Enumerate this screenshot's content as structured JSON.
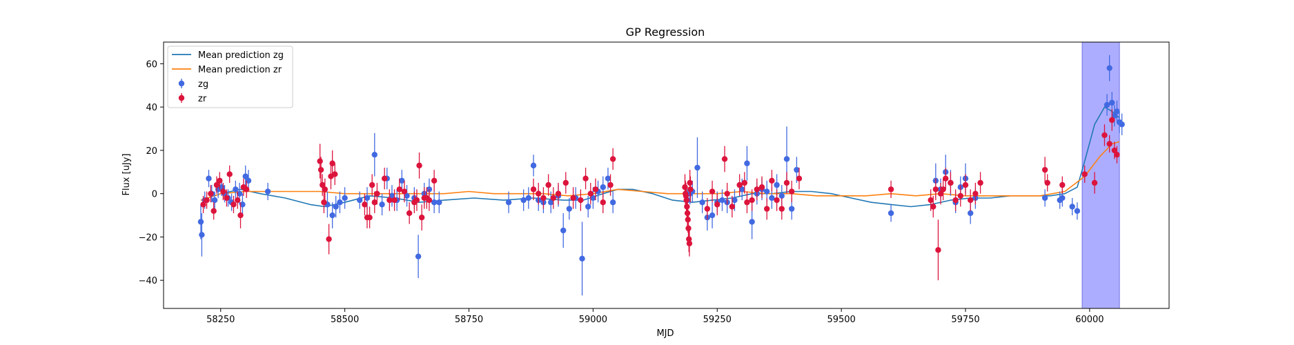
{
  "chart_data": {
    "type": "scatter",
    "title": "GP Regression",
    "xlabel": "MJD",
    "ylabel": "Flux [uJy]",
    "xlim": [
      58135,
      60160
    ],
    "ylim": [
      -53,
      70
    ],
    "xticks": [
      58250,
      58500,
      58750,
      59000,
      59250,
      59500,
      59750,
      60000
    ],
    "yticks": [
      -40,
      -20,
      0,
      20,
      40,
      60
    ],
    "legend": {
      "placement": "top-left",
      "entries": [
        "Mean prediction zg",
        "Mean prediction zr",
        "zg",
        "zr"
      ]
    },
    "colors": {
      "zg_points": "#4169e1",
      "zr_points": "#dc143c",
      "zg_line": "#1f77b4",
      "zr_line": "#ff7f0e",
      "band": "#a9a9ff",
      "band_edge": "#6f6fe6"
    },
    "highlight_band": {
      "x0": 59985,
      "x1": 60060
    },
    "series": [
      {
        "name": "Mean prediction zg",
        "kind": "line",
        "x": [
          58210,
          58250,
          58290,
          58330,
          58380,
          58430,
          58460,
          58500,
          58550,
          58600,
          58650,
          58700,
          58760,
          58820,
          58880,
          58940,
          58980,
          59020,
          59050,
          59080,
          59120,
          59160,
          59200,
          59240,
          59280,
          59320,
          59360,
          59400,
          59440,
          59480,
          59520,
          59560,
          59600,
          59640,
          59680,
          59720,
          59760,
          59800,
          59840,
          59880,
          59920,
          59950,
          59975,
          59990,
          60010,
          60030,
          60045,
          60060
        ],
        "y": [
          -3,
          0,
          2,
          0,
          -2,
          -5,
          -6,
          -4,
          -1,
          -2,
          -4,
          -3,
          -2,
          -3,
          -2,
          -3,
          -3,
          0,
          2,
          2,
          0,
          -3,
          -4,
          -3,
          -2,
          0,
          0,
          1,
          1,
          0,
          -2,
          -4,
          -5,
          -6,
          -5,
          -3,
          -2,
          -2,
          -1,
          -1,
          -1,
          0,
          3,
          15,
          32,
          40,
          38,
          35
        ]
      },
      {
        "name": "Mean prediction zr",
        "kind": "line",
        "x": [
          58210,
          58250,
          58300,
          58350,
          58400,
          58450,
          58500,
          58550,
          58600,
          58650,
          58700,
          58750,
          58800,
          58850,
          58900,
          58950,
          59000,
          59050,
          59100,
          59150,
          59200,
          59250,
          59300,
          59350,
          59400,
          59450,
          59500,
          59550,
          59600,
          59650,
          59700,
          59750,
          59800,
          59850,
          59900,
          59950,
          59990,
          60020,
          60045,
          60060
        ],
        "y": [
          -3,
          0,
          1,
          1,
          1,
          1,
          0,
          0,
          0,
          0,
          0,
          1,
          0,
          0,
          0,
          -1,
          0,
          2,
          1,
          0,
          0,
          0,
          1,
          0,
          0,
          -1,
          -1,
          -1,
          0,
          -1,
          0,
          -1,
          -1,
          -1,
          -1,
          1,
          8,
          17,
          23,
          24
        ]
      },
      {
        "name": "zg",
        "kind": "errorbar",
        "x": [
          58210,
          58212,
          58218,
          58226,
          58232,
          58238,
          58245,
          58252,
          58258,
          58265,
          58272,
          58280,
          58288,
          58294,
          58300,
          58306,
          58345,
          58465,
          58475,
          58482,
          58490,
          58500,
          58530,
          58545,
          58560,
          58575,
          58585,
          58595,
          58605,
          58615,
          58625,
          58640,
          58648,
          58660,
          58670,
          58680,
          58690,
          58830,
          58860,
          58870,
          58880,
          58890,
          58900,
          58915,
          58930,
          58940,
          58952,
          58965,
          58978,
          58990,
          59000,
          59010,
          59020,
          59030,
          59040,
          59190,
          59195,
          59200,
          59210,
          59220,
          59230,
          59240,
          59250,
          59260,
          59270,
          59285,
          59300,
          59310,
          59320,
          59330,
          59340,
          59350,
          59360,
          59370,
          59380,
          59390,
          59400,
          59410,
          59600,
          59690,
          59700,
          59710,
          59720,
          59730,
          59740,
          59750,
          59760,
          59770,
          59910,
          59940,
          59945,
          59965,
          59975,
          60035,
          60040,
          60045,
          60050,
          60055,
          60060,
          60065
        ],
        "y": [
          -13,
          -19,
          -3,
          7,
          0,
          -3,
          2,
          3,
          0,
          -2,
          -4,
          2,
          0,
          -5,
          8,
          6,
          1,
          -5,
          -10,
          -6,
          -4,
          -2,
          -3,
          -2,
          18,
          -5,
          7,
          -1,
          -3,
          6,
          -1,
          -2,
          -29,
          0,
          2,
          -4,
          -4,
          -4,
          -3,
          -2,
          13,
          -3,
          -4,
          -4,
          -1,
          -17,
          -7,
          -2,
          -30,
          -6,
          -2,
          1,
          3,
          7,
          -4,
          -3,
          0,
          1,
          12,
          -4,
          -11,
          -10,
          -4,
          -3,
          -4,
          -3,
          2,
          14,
          -13,
          0,
          2,
          1,
          -2,
          4,
          -1,
          16,
          -7,
          11,
          -9,
          6,
          2,
          10,
          5,
          -4,
          3,
          7,
          -9,
          -2,
          -2,
          -3,
          -2,
          -6,
          -8,
          41,
          58,
          42,
          36,
          38,
          33,
          32
        ],
        "yerr": [
          8,
          10,
          4,
          4,
          4,
          4,
          4,
          4,
          4,
          4,
          4,
          4,
          5,
          5,
          5,
          5,
          4,
          6,
          6,
          5,
          5,
          5,
          4,
          5,
          10,
          5,
          5,
          5,
          5,
          5,
          5,
          5,
          10,
          5,
          5,
          5,
          5,
          5,
          5,
          5,
          5,
          5,
          5,
          5,
          5,
          8,
          5,
          5,
          17,
          5,
          5,
          5,
          5,
          5,
          5,
          5,
          5,
          5,
          14,
          5,
          6,
          6,
          5,
          5,
          5,
          5,
          5,
          8,
          8,
          5,
          5,
          5,
          5,
          5,
          5,
          15,
          5,
          6,
          4,
          8,
          5,
          8,
          6,
          5,
          5,
          7,
          5,
          5,
          4,
          4,
          4,
          4,
          4,
          5,
          6,
          5,
          5,
          5,
          5,
          5
        ]
      },
      {
        "name": "zr",
        "kind": "errorbar",
        "x": [
          58215,
          58222,
          58230,
          58236,
          58242,
          58248,
          58255,
          58262,
          58268,
          58276,
          58284,
          58290,
          58296,
          58302,
          58450,
          58452,
          58455,
          58458,
          58460,
          58468,
          58472,
          58475,
          58480,
          58540,
          58545,
          58550,
          58555,
          58560,
          58565,
          58580,
          58590,
          58600,
          58610,
          58620,
          58630,
          58640,
          58645,
          58650,
          58655,
          58660,
          58665,
          58670,
          58680,
          58880,
          58890,
          58900,
          58910,
          58920,
          58930,
          58945,
          58960,
          58975,
          58985,
          58995,
          59005,
          59020,
          59035,
          59040,
          59185,
          59186,
          59187,
          59188,
          59189,
          59190,
          59191,
          59192,
          59193,
          59194,
          59195,
          59196,
          59230,
          59240,
          59250,
          59265,
          59270,
          59280,
          59295,
          59305,
          59310,
          59320,
          59330,
          59340,
          59350,
          59360,
          59370,
          59380,
          59390,
          59400,
          59415,
          59600,
          59680,
          59685,
          59690,
          59695,
          59700,
          59705,
          59710,
          59720,
          59730,
          59740,
          59750,
          59760,
          59770,
          59780,
          59910,
          59915,
          59945,
          59990,
          60010,
          60030,
          60040,
          60045,
          60050,
          60055
        ],
        "y": [
          -5,
          -3,
          0,
          -8,
          4,
          6,
          1,
          -2,
          9,
          -5,
          -3,
          -10,
          3,
          2,
          15,
          11,
          4,
          -4,
          2,
          -21,
          8,
          14,
          9,
          -5,
          -11,
          -11,
          4,
          -4,
          0,
          7,
          -3,
          -3,
          2,
          1,
          -9,
          -4,
          -3,
          13,
          -11,
          -2,
          -2,
          -3,
          6,
          2,
          0,
          -2,
          4,
          -2,
          0,
          5,
          -2,
          -3,
          7,
          0,
          2,
          -4,
          4,
          16,
          3,
          0,
          -1,
          -3,
          -6,
          -9,
          -12,
          -16,
          -21,
          -23,
          5,
          2,
          -7,
          1,
          -5,
          16,
          0,
          -6,
          4,
          5,
          -4,
          -3,
          2,
          3,
          -7,
          6,
          -3,
          -7,
          5,
          1,
          7,
          2,
          -3,
          -6,
          2,
          -26,
          0,
          2,
          7,
          5,
          -3,
          -1,
          4,
          -3,
          0,
          5,
          11,
          5,
          4,
          9,
          5,
          27,
          23,
          34,
          20,
          18
        ],
        "yerr": [
          4,
          4,
          4,
          4,
          4,
          4,
          4,
          4,
          4,
          4,
          4,
          6,
          4,
          4,
          8,
          6,
          5,
          5,
          5,
          7,
          6,
          6,
          5,
          5,
          5,
          5,
          5,
          5,
          5,
          5,
          5,
          5,
          5,
          5,
          5,
          5,
          5,
          6,
          6,
          5,
          5,
          5,
          5,
          5,
          5,
          5,
          5,
          5,
          5,
          5,
          5,
          5,
          5,
          5,
          5,
          5,
          5,
          5,
          6,
          6,
          6,
          6,
          6,
          6,
          6,
          6,
          6,
          6,
          6,
          6,
          5,
          5,
          5,
          6,
          5,
          5,
          5,
          5,
          5,
          5,
          5,
          5,
          5,
          5,
          5,
          5,
          5,
          5,
          5,
          4,
          5,
          5,
          5,
          14,
          5,
          5,
          5,
          5,
          5,
          5,
          5,
          5,
          5,
          5,
          6,
          4,
          4,
          4,
          5,
          5,
          4,
          5,
          4,
          4
        ]
      }
    ]
  }
}
